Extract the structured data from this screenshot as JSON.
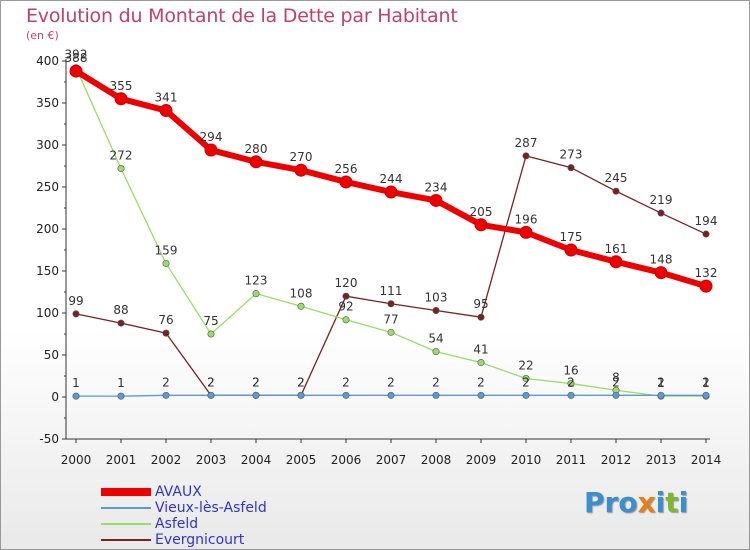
{
  "chart_data": {
    "type": "line",
    "title": "Evolution du Montant de la Dette par Habitant",
    "subtitle": "(en €)",
    "xlabel": "",
    "ylabel": "",
    "ylim": [
      -50,
      400
    ],
    "yticks": [
      -50,
      0,
      50,
      100,
      150,
      200,
      250,
      300,
      350,
      400
    ],
    "grid": false,
    "legend_position": "bottom-left",
    "categories": [
      "2000",
      "2001",
      "2002",
      "2003",
      "2004",
      "2005",
      "2006",
      "2007",
      "2008",
      "2009",
      "2010",
      "2011",
      "2012",
      "2013",
      "2014"
    ],
    "series": [
      {
        "name": "AVAUX",
        "color": "#ee0000",
        "values": [
          388,
          355,
          341,
          294,
          280,
          270,
          256,
          244,
          234,
          205,
          196,
          175,
          161,
          148,
          132
        ]
      },
      {
        "name": "Vieux-lès-Asfeld",
        "color": "#5b9bd5",
        "values": [
          1,
          1,
          2,
          2,
          2,
          2,
          2,
          2,
          2,
          2,
          2,
          2,
          2,
          2,
          2
        ]
      },
      {
        "name": "Asfeld",
        "color": "#99dd66",
        "values": [
          392,
          272,
          159,
          75,
          123,
          108,
          92,
          77,
          54,
          41,
          22,
          16,
          8,
          1,
          1
        ]
      },
      {
        "name": "Evergnicourt",
        "color": "#772222",
        "values": [
          99,
          88,
          76,
          2,
          2,
          2,
          120,
          111,
          103,
          95,
          287,
          273,
          245,
          219,
          194
        ]
      }
    ]
  },
  "logo": {
    "text": "Proxiti"
  }
}
